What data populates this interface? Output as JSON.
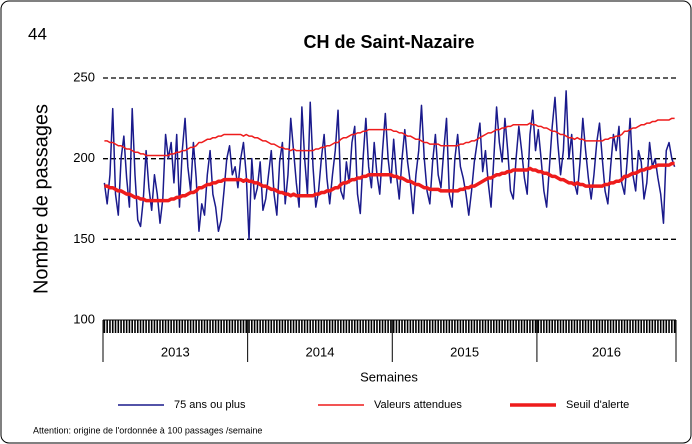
{
  "chart_data": {
    "type": "line",
    "corner_label": "44",
    "title": "CH de Saint-Nazaire",
    "y_label": "Nombre de passages",
    "x_label": "Semaines",
    "footnote": "Attention:  origine de l'ordonnée à 100 passages /semaine",
    "ylim": [
      100,
      250
    ],
    "yticks": [
      100,
      150,
      200,
      250
    ],
    "grid": true,
    "categories": [
      "2013",
      "2013",
      "2013",
      "2013",
      "2013",
      "2013",
      "2013",
      "2013",
      "2013",
      "2013",
      "2013",
      "2013",
      "2013",
      "2013",
      "2013",
      "2013",
      "2013",
      "2013",
      "2013",
      "2013",
      "2013",
      "2013",
      "2013",
      "2013",
      "2013",
      "2013",
      "2013",
      "2013",
      "2013",
      "2013",
      "2013",
      "2013",
      "2013",
      "2013",
      "2013",
      "2013",
      "2013",
      "2013",
      "2013",
      "2013",
      "2013",
      "2013",
      "2013",
      "2013",
      "2013",
      "2013",
      "2013",
      "2013",
      "2013",
      "2013",
      "2013",
      "2013",
      "2014",
      "2014",
      "2014",
      "2014",
      "2014",
      "2014",
      "2014",
      "2014",
      "2014",
      "2014",
      "2014",
      "2014",
      "2014",
      "2014",
      "2014",
      "2014",
      "2014",
      "2014",
      "2014",
      "2014",
      "2014",
      "2014",
      "2014",
      "2014",
      "2014",
      "2014",
      "2014",
      "2014",
      "2014",
      "2014",
      "2014",
      "2014",
      "2014",
      "2014",
      "2014",
      "2014",
      "2014",
      "2014",
      "2014",
      "2014",
      "2014",
      "2014",
      "2014",
      "2014",
      "2014",
      "2014",
      "2014",
      "2014",
      "2014",
      "2014",
      "2014",
      "2014",
      "2015",
      "2015",
      "2015",
      "2015",
      "2015",
      "2015",
      "2015",
      "2015",
      "2015",
      "2015",
      "2015",
      "2015",
      "2015",
      "2015",
      "2015",
      "2015",
      "2015",
      "2015",
      "2015",
      "2015",
      "2015",
      "2015",
      "2015",
      "2015",
      "2015",
      "2015",
      "2015",
      "2015",
      "2015",
      "2015",
      "2015",
      "2015",
      "2015",
      "2015",
      "2015",
      "2015",
      "2015",
      "2015",
      "2015",
      "2015",
      "2015",
      "2015",
      "2015",
      "2015",
      "2015",
      "2015",
      "2015",
      "2015",
      "2015",
      "2015",
      "2015",
      "2015",
      "2016",
      "2016",
      "2016",
      "2016",
      "2016",
      "2016",
      "2016",
      "2016",
      "2016",
      "2016",
      "2016",
      "2016",
      "2016",
      "2016",
      "2016",
      "2016",
      "2016",
      "2016",
      "2016",
      "2016",
      "2016",
      "2016",
      "2016",
      "2016",
      "2016",
      "2016",
      "2016",
      "2016",
      "2016",
      "2016",
      "2016",
      "2016",
      "2016",
      "2016",
      "2016",
      "2016",
      "2016",
      "2016",
      "2016",
      "2016",
      "2016",
      "2016",
      "2016",
      "2016",
      "2016",
      "2016",
      "2016",
      "2016",
      "2016",
      "2016"
    ],
    "series": [
      {
        "name": "75 ans ou plus",
        "color": "#1a1a8c",
        "line_width": 1.5,
        "values": [
          185,
          172,
          190,
          231,
          178,
          165,
          200,
          214,
          188,
          170,
          231,
          190,
          162,
          158,
          175,
          205,
          182,
          168,
          190,
          178,
          160,
          175,
          215,
          200,
          210,
          185,
          215,
          170,
          205,
          225,
          195,
          180,
          210,
          188,
          155,
          172,
          165,
          190,
          205,
          178,
          170,
          155,
          162,
          180,
          200,
          208,
          190,
          195,
          182,
          200,
          210,
          190,
          150,
          200,
          175,
          182,
          198,
          168,
          175,
          190,
          205,
          178,
          165,
          198,
          210,
          172,
          190,
          225,
          205,
          185,
          170,
          232,
          200,
          178,
          235,
          195,
          170,
          180,
          200,
          215,
          188,
          172,
          190,
          205,
          230,
          180,
          175,
          198,
          185,
          210,
          220,
          178,
          166,
          200,
          225,
          195,
          182,
          210,
          190,
          178,
          205,
          228,
          200,
          185,
          212,
          190,
          175,
          200,
          218,
          198,
          185,
          166,
          190,
          205,
          233,
          200,
          180,
          172,
          198,
          215,
          190,
          182,
          205,
          225,
          178,
          170,
          200,
          215,
          195,
          188,
          178,
          165,
          180,
          198,
          210,
          222,
          192,
          205,
          185,
          170,
          200,
          232,
          210,
          198,
          225,
          205,
          180,
          175,
          200,
          220,
          205,
          188,
          178,
          215,
          230,
          205,
          218,
          200,
          180,
          170,
          195,
          220,
          238,
          210,
          190,
          205,
          242,
          200,
          215,
          185,
          178,
          198,
          225,
          205,
          188,
          175,
          190,
          210,
          222,
          200,
          180,
          172,
          195,
          215,
          205,
          220,
          185,
          178,
          200,
          225,
          190,
          180,
          205,
          198,
          175,
          185,
          210,
          195,
          200,
          188,
          178,
          160,
          205,
          210,
          200,
          195
        ]
      },
      {
        "name": "Valeurs attendues",
        "color": "#ee1c1c",
        "line_width": 1.5,
        "values": [
          211,
          211,
          210,
          210,
          209,
          208,
          208,
          207,
          206,
          206,
          205,
          204,
          204,
          203,
          203,
          202,
          202,
          202,
          202,
          202,
          202,
          202,
          202,
          202,
          203,
          203,
          204,
          204,
          205,
          205,
          206,
          207,
          207,
          208,
          210,
          210,
          211,
          212,
          212,
          213,
          213,
          214,
          214,
          215,
          215,
          215,
          215,
          215,
          215,
          215,
          214,
          215,
          214,
          214,
          213,
          213,
          212,
          211,
          211,
          210,
          209,
          209,
          208,
          207,
          207,
          206,
          206,
          205,
          206,
          205,
          205,
          205,
          205,
          205,
          205,
          205,
          206,
          206,
          207,
          207,
          208,
          208,
          209,
          210,
          210,
          212,
          213,
          213,
          214,
          215,
          215,
          216,
          216,
          217,
          217,
          218,
          218,
          218,
          218,
          218,
          218,
          218,
          218,
          218,
          217,
          217,
          216,
          216,
          215,
          214,
          214,
          213,
          212,
          212,
          211,
          210,
          210,
          209,
          209,
          209,
          209,
          208,
          208,
          208,
          208,
          208,
          208,
          208,
          209,
          209,
          210,
          210,
          211,
          211,
          212,
          213,
          214,
          215,
          216,
          216,
          217,
          218,
          218,
          219,
          219,
          220,
          220,
          221,
          221,
          221,
          221,
          221,
          221,
          222,
          221,
          221,
          220,
          220,
          219,
          219,
          218,
          217,
          217,
          216,
          215,
          215,
          214,
          213,
          213,
          212,
          213,
          212,
          212,
          211,
          211,
          211,
          211,
          211,
          211,
          211,
          212,
          212,
          213,
          213,
          214,
          214,
          215,
          217,
          217,
          218,
          219,
          219,
          220,
          221,
          221,
          222,
          222,
          223,
          223,
          224,
          224,
          224,
          224,
          224,
          225,
          225
        ]
      },
      {
        "name": "Seuil d'alerte",
        "color": "#ee1c1c",
        "line_width": 3.5,
        "values": [
          183,
          183,
          182,
          182,
          181,
          180,
          180,
          179,
          178,
          178,
          177,
          176,
          176,
          175,
          175,
          174,
          174,
          174,
          174,
          174,
          174,
          174,
          174,
          174,
          175,
          175,
          176,
          176,
          177,
          177,
          178,
          179,
          179,
          180,
          182,
          182,
          183,
          184,
          184,
          185,
          185,
          186,
          186,
          187,
          187,
          187,
          187,
          187,
          187,
          187,
          186,
          187,
          186,
          186,
          185,
          185,
          184,
          183,
          183,
          182,
          181,
          181,
          180,
          179,
          179,
          178,
          178,
          177,
          178,
          177,
          177,
          177,
          177,
          177,
          177,
          177,
          178,
          178,
          179,
          179,
          180,
          180,
          181,
          182,
          182,
          184,
          185,
          185,
          186,
          187,
          187,
          188,
          188,
          189,
          189,
          190,
          190,
          190,
          190,
          190,
          190,
          190,
          190,
          190,
          189,
          189,
          188,
          188,
          187,
          186,
          186,
          185,
          184,
          184,
          183,
          182,
          182,
          181,
          181,
          181,
          181,
          180,
          180,
          180,
          180,
          180,
          180,
          180,
          181,
          181,
          182,
          182,
          183,
          183,
          184,
          185,
          186,
          187,
          188,
          188,
          189,
          190,
          190,
          191,
          191,
          192,
          192,
          193,
          193,
          193,
          193,
          193,
          193,
          194,
          193,
          193,
          192,
          192,
          191,
          191,
          190,
          189,
          189,
          188,
          187,
          187,
          186,
          185,
          185,
          184,
          185,
          184,
          184,
          183,
          183,
          183,
          183,
          183,
          183,
          183,
          184,
          184,
          185,
          185,
          186,
          186,
          187,
          189,
          189,
          190,
          191,
          191,
          192,
          193,
          193,
          194,
          194,
          195,
          195,
          196,
          196,
          196,
          196,
          196,
          197,
          197
        ]
      }
    ]
  }
}
